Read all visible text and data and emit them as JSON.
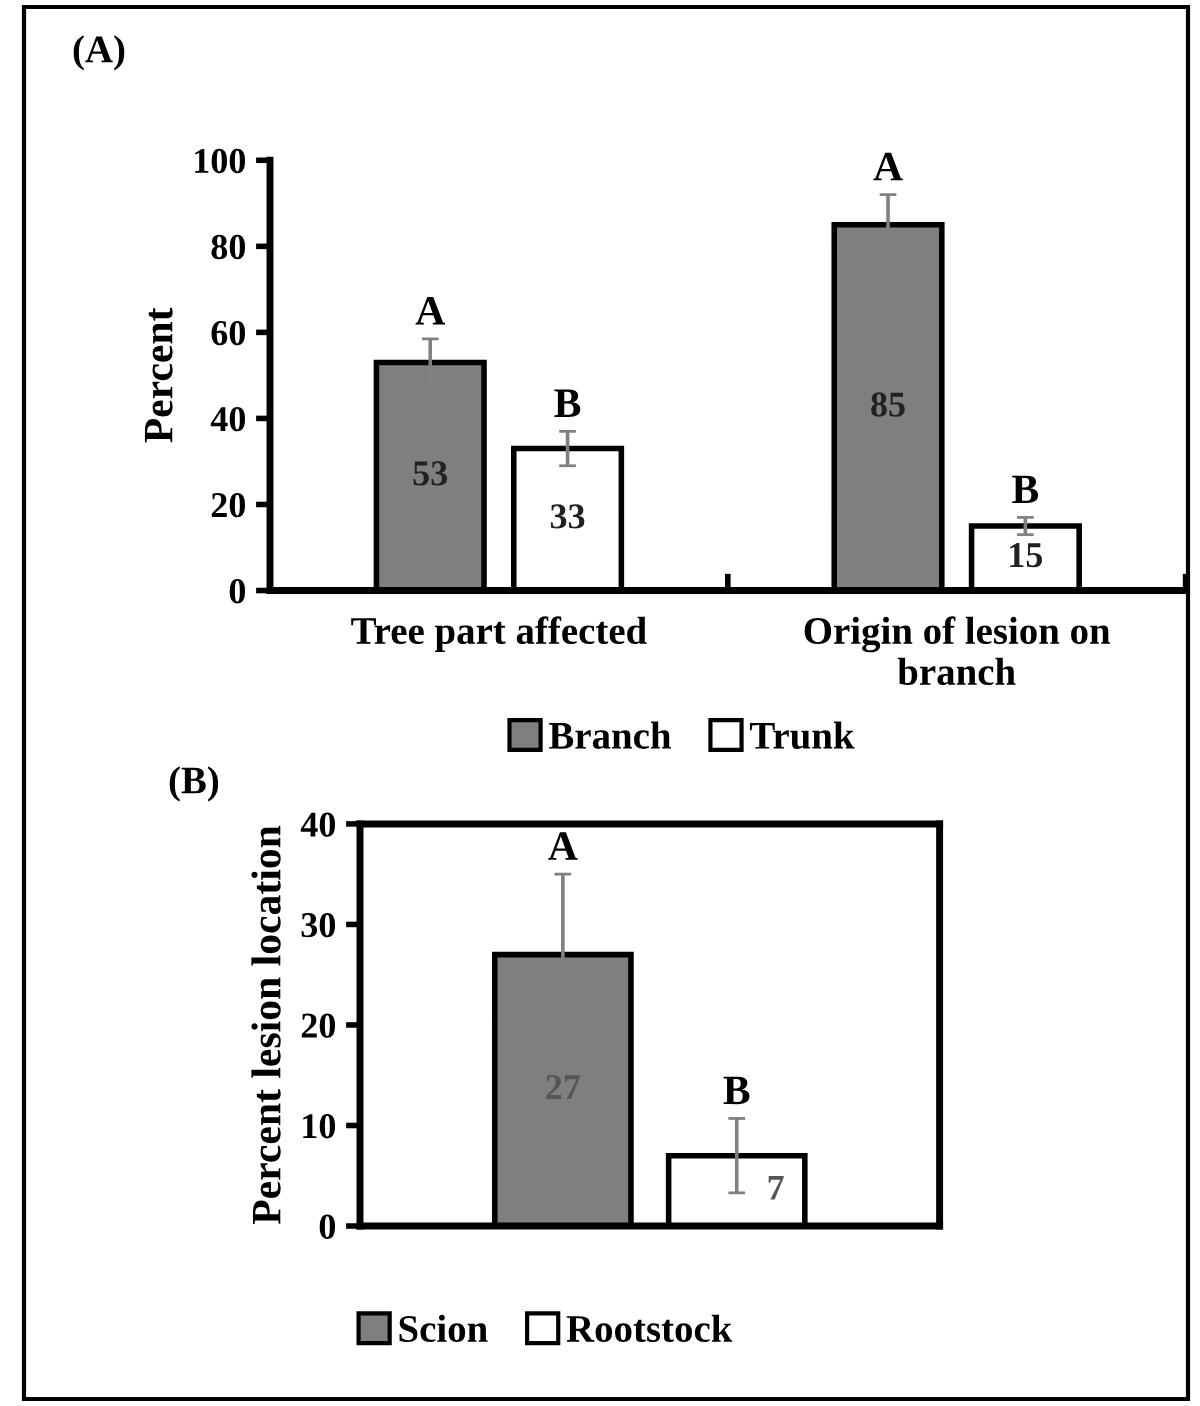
{
  "chart_data": [
    {
      "type": "bar",
      "title": "(A)",
      "ylabel": "Percent",
      "categories": [
        "Tree part affected",
        "Origin of lesion on branch"
      ],
      "series": [
        {
          "name": "Branch",
          "color": "#7f7f7f",
          "values": [
            53,
            85
          ],
          "errors": [
            5.5,
            7
          ]
        },
        {
          "name": "Trunk",
          "color": "#ffffff",
          "values": [
            33,
            15
          ],
          "errors": [
            4,
            2
          ]
        }
      ],
      "ylim": [
        0,
        100
      ],
      "yticks": [
        0,
        20,
        40,
        60,
        80,
        100
      ],
      "data_labels": true,
      "legend": "bottom",
      "grid": false,
      "annotations": [
        "A",
        "B",
        "A",
        "B"
      ]
    },
    {
      "type": "bar",
      "title": "(B)",
      "ylabel": "Percent lesion location",
      "categories": [
        null
      ],
      "series": [
        {
          "name": "Scion",
          "color": "#7f7f7f",
          "values": [
            27
          ],
          "errors": [
            8
          ]
        },
        {
          "name": "Rootstock",
          "color": "#ffffff",
          "values": [
            7
          ],
          "errors": [
            3.7
          ]
        }
      ],
      "ylim": [
        0,
        40
      ],
      "yticks": [
        0,
        10,
        20,
        30,
        40
      ],
      "data_labels": true,
      "legend": "bottom",
      "grid": false,
      "annotations": [
        "A",
        "B"
      ]
    }
  ]
}
